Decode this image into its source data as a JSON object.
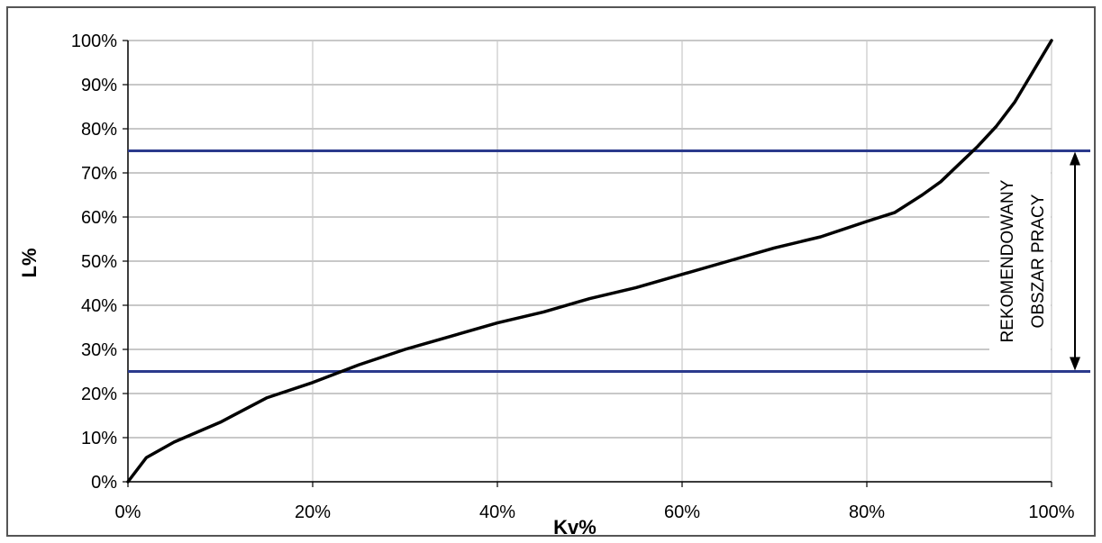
{
  "chart_data": {
    "type": "line",
    "title": "",
    "xlabel": "Kv%",
    "ylabel": "L%",
    "xlim": [
      0,
      100
    ],
    "ylim": [
      0,
      100
    ],
    "x_tick_labels": [
      "0%",
      "20%",
      "40%",
      "60%",
      "80%",
      "100%"
    ],
    "y_tick_labels": [
      "0%",
      "10%",
      "20%",
      "30%",
      "40%",
      "50%",
      "60%",
      "70%",
      "80%",
      "90%",
      "100%"
    ],
    "grid": true,
    "series": [
      {
        "color": "#000000",
        "x": [
          0,
          2,
          5,
          10,
          15,
          20,
          25,
          30,
          35,
          40,
          45,
          50,
          55,
          60,
          65,
          70,
          75,
          80,
          83,
          86,
          88,
          90,
          92,
          94,
          96,
          98,
          100
        ],
        "y": [
          0,
          5.5,
          9,
          13.5,
          19,
          22.5,
          26.5,
          30,
          33,
          36,
          38.5,
          41.5,
          44,
          47,
          50,
          53,
          55.5,
          59,
          61,
          65,
          68,
          72,
          76,
          80.5,
          86,
          93,
          100
        ]
      }
    ],
    "reference_lines": {
      "axis": "y",
      "values": [
        25,
        75
      ],
      "color": "#2b3a8c"
    },
    "annotation": {
      "lines": [
        "REKOMENDOWANY",
        "OBSZAR PRACY"
      ],
      "range": [
        25,
        75
      ]
    }
  }
}
